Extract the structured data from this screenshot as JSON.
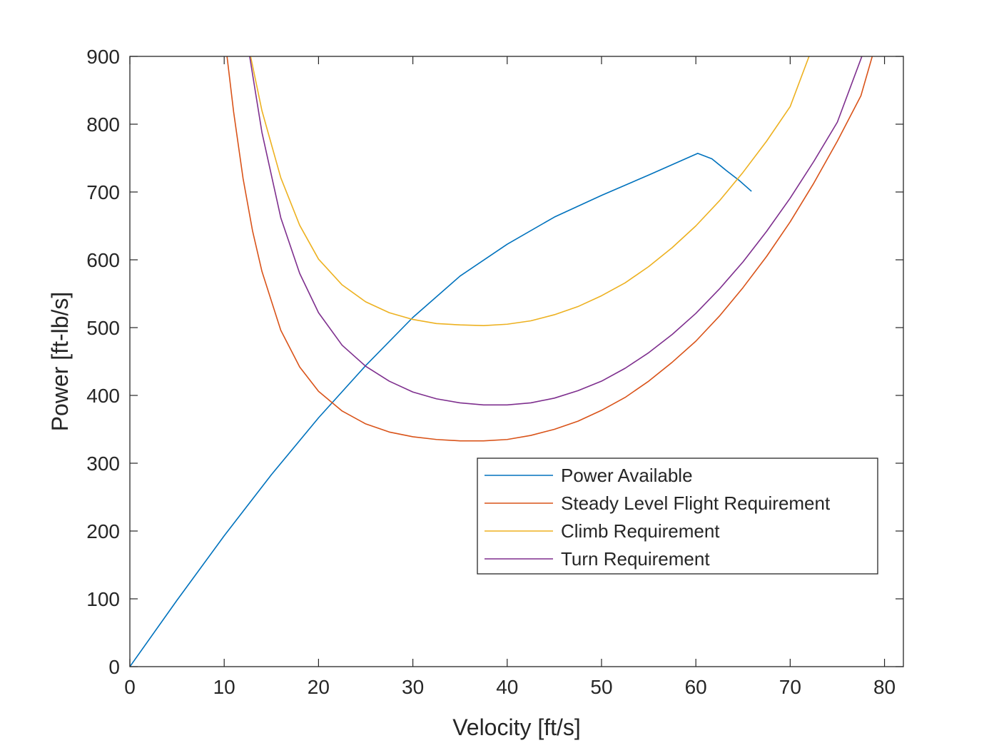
{
  "chart_data": {
    "type": "line",
    "title": "",
    "xlabel": "Velocity [ft/s]",
    "ylabel": "Power [ft-lb/s]",
    "xlim": [
      0,
      82
    ],
    "ylim": [
      0,
      900
    ],
    "xticks": [
      0,
      10,
      20,
      30,
      40,
      50,
      60,
      70,
      80
    ],
    "yticks": [
      0,
      100,
      200,
      300,
      400,
      500,
      600,
      700,
      800,
      900
    ],
    "grid": false,
    "legend_position": "lower-right",
    "series": [
      {
        "name": "Power Available",
        "color": "#0072BD",
        "x": [
          0,
          5,
          10,
          15,
          20,
          25,
          30,
          35,
          40,
          45,
          50,
          55,
          60.2,
          61.7,
          63.2,
          64.6,
          65.9
        ],
        "y": [
          0,
          98,
          193,
          283,
          367,
          444,
          515,
          576,
          623,
          663,
          695,
          725,
          757,
          749,
          732,
          717,
          701
        ]
      },
      {
        "name": "Steady Level Flight Requirement",
        "color": "#D95319",
        "x": [
          10.3,
          11,
          12,
          13,
          14,
          16,
          18,
          20,
          22.5,
          25,
          27.5,
          30,
          32.5,
          35,
          37.5,
          40,
          42.5,
          45,
          47.5,
          50,
          52.5,
          55,
          57.5,
          60,
          62.5,
          65,
          67.5,
          70,
          72.5,
          75,
          77.5,
          78.7
        ],
        "y": [
          900,
          818,
          720,
          643,
          583,
          496,
          442,
          406,
          377,
          358,
          346,
          339,
          335,
          333,
          333,
          335,
          341,
          350,
          362,
          378,
          397,
          421,
          449,
          480,
          517,
          559,
          605,
          656,
          713,
          775,
          842,
          900
        ]
      },
      {
        "name": "Climb Requirement",
        "color": "#EDB120",
        "x": [
          12.8,
          14,
          16,
          18,
          20,
          22.5,
          25,
          27.5,
          30,
          32.5,
          35,
          37.5,
          40,
          42.5,
          45,
          47.5,
          50,
          52.5,
          55,
          57.5,
          60,
          62.5,
          65,
          67.5,
          70,
          72
        ],
        "y": [
          900,
          820,
          721,
          651,
          601,
          563,
          538,
          522,
          512,
          506,
          504,
          503,
          505,
          510,
          519,
          531,
          547,
          566,
          590,
          618,
          650,
          687,
          729,
          775,
          826,
          900
        ]
      },
      {
        "name": "Turn Requirement",
        "color": "#7E2F8E",
        "x": [
          12.7,
          14,
          16,
          18,
          20,
          22.5,
          25,
          27.5,
          30,
          32.5,
          35,
          37.5,
          40,
          42.5,
          45,
          47.5,
          50,
          52.5,
          55,
          57.5,
          60,
          62.5,
          65,
          67.5,
          70,
          72.5,
          75,
          77.6
        ],
        "y": [
          900,
          788,
          662,
          580,
          522,
          474,
          443,
          421,
          405,
          395,
          389,
          386,
          386,
          389,
          396,
          407,
          421,
          440,
          463,
          490,
          521,
          557,
          597,
          642,
          691,
          745,
          803,
          900
        ]
      }
    ]
  }
}
